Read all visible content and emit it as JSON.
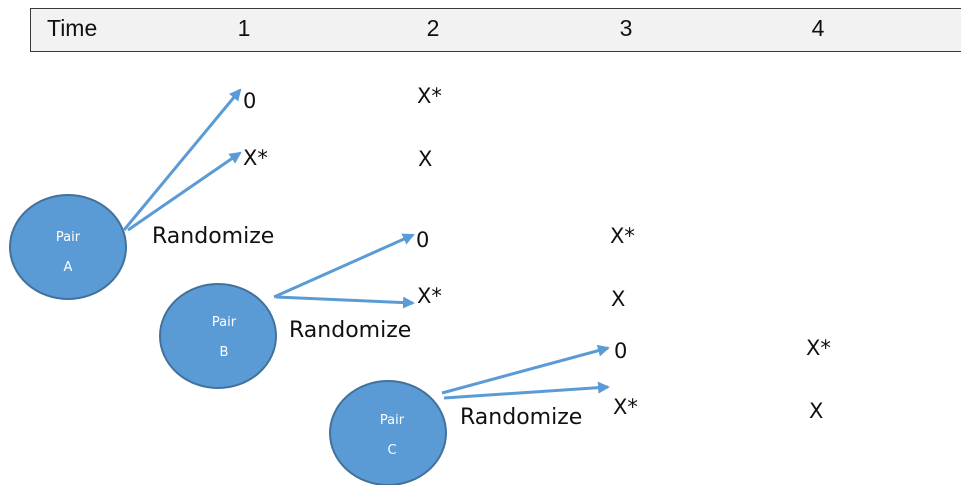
{
  "header": {
    "label": "Time",
    "periods": [
      "1",
      "2",
      "3",
      "4"
    ]
  },
  "pairs": [
    {
      "name_line1": "Pair",
      "name_line2": "A",
      "randomize_label": "Randomize",
      "arm_labels": [
        "0",
        "X*"
      ],
      "later_labels": [
        "X*",
        "X"
      ]
    },
    {
      "name_line1": "Pair",
      "name_line2": "B",
      "randomize_label": "Randomize",
      "arm_labels": [
        "0",
        "X*"
      ],
      "later_labels": [
        "X*",
        "X"
      ]
    },
    {
      "name_line1": "Pair",
      "name_line2": "C",
      "randomize_label": "Randomize",
      "arm_labels": [
        "0",
        "X*"
      ],
      "later_labels": [
        "X*",
        "X"
      ]
    }
  ],
  "colors": {
    "circle_fill": "#5b9bd5",
    "circle_stroke": "#41719c",
    "arrow": "#5b9bd5",
    "header_bg": "#f2f2f2"
  }
}
